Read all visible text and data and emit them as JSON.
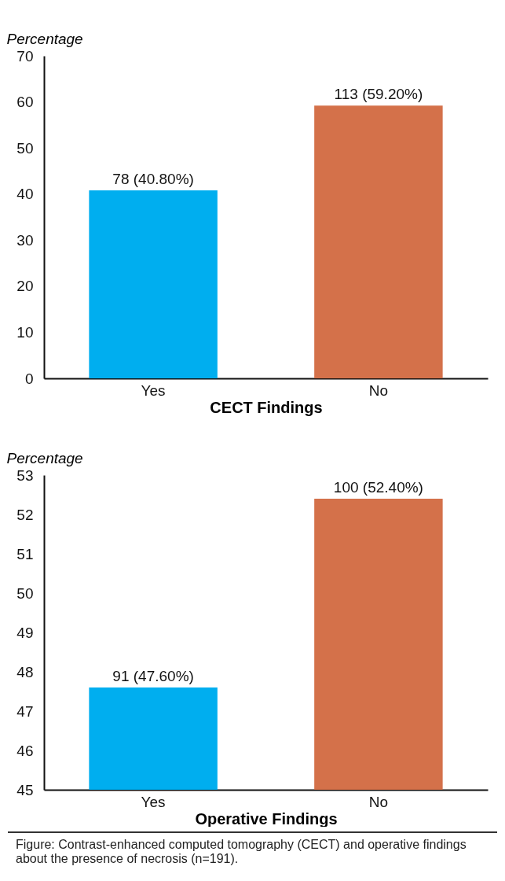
{
  "chart_data": [
    {
      "type": "bar",
      "ylabel": "Percentage",
      "xlabel": "CECT Findings",
      "categories": [
        "Yes",
        "No"
      ],
      "values": [
        40.8,
        59.2
      ],
      "colors": [
        "#00aeef",
        "#d4714a"
      ],
      "value_labels": [
        "78 (40.80%)",
        "113 (59.20%)"
      ],
      "ylim": [
        0,
        70
      ],
      "yticks": [
        0,
        10,
        20,
        30,
        40,
        50,
        60,
        70
      ]
    },
    {
      "type": "bar",
      "ylabel": "Percentage",
      "xlabel": "Operative Findings",
      "categories": [
        "Yes",
        "No"
      ],
      "values": [
        47.6,
        52.4
      ],
      "colors": [
        "#00aeef",
        "#d4714a"
      ],
      "value_labels": [
        "91 (47.60%)",
        "100 (52.40%)"
      ],
      "ylim": [
        45,
        53
      ],
      "yticks": [
        45,
        46,
        47,
        48,
        49,
        50,
        51,
        52,
        53
      ],
      "annotations": [
        "Figure: Contrast-enhanced computed tomography (CECT) and operative findings about the presence of necrosis (n=191)."
      ]
    }
  ]
}
